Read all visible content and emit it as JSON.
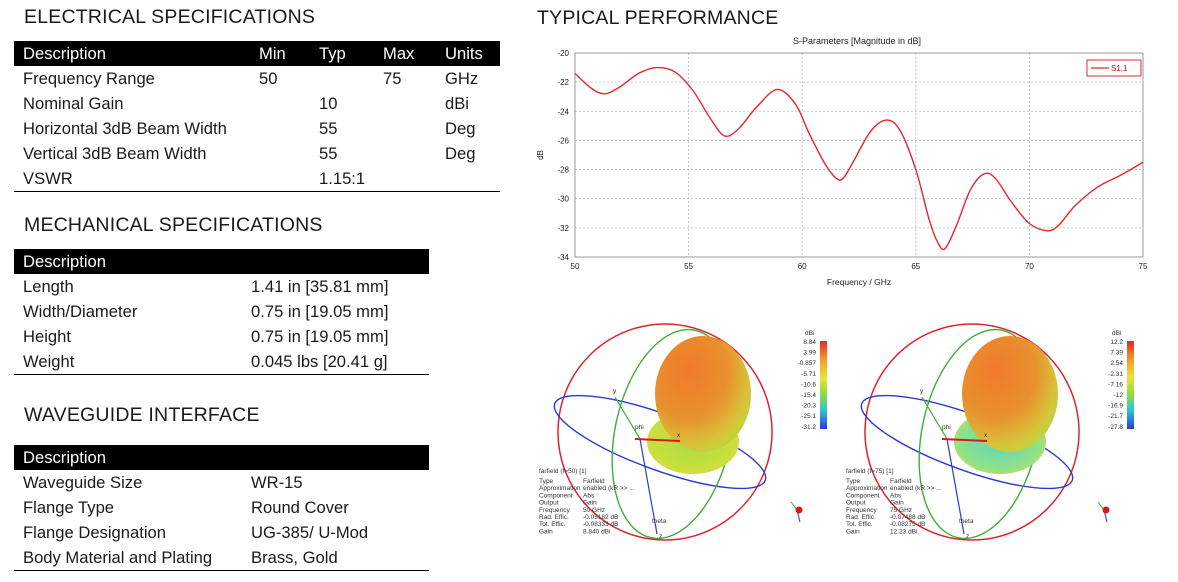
{
  "electrical": {
    "title": "ELECTRICAL SPECIFICATIONS",
    "headers": [
      "Description",
      "Min",
      "Typ",
      "Max",
      "Units"
    ],
    "rows": [
      [
        "Frequency Range",
        "50",
        "",
        "75",
        "GHz"
      ],
      [
        "Nominal Gain",
        "",
        "10",
        "",
        "dBi"
      ],
      [
        "Horizontal 3dB Beam Width",
        "",
        "55",
        "",
        "Deg"
      ],
      [
        "Vertical 3dB Beam Width",
        "",
        "55",
        "",
        "Deg"
      ],
      [
        "VSWR",
        "",
        "1.15:1",
        "",
        ""
      ]
    ]
  },
  "mechanical": {
    "title": "MECHANICAL SPECIFICATIONS",
    "header": "Description",
    "rows": [
      [
        "Length",
        "1.41 in [35.81 mm]"
      ],
      [
        "Width/Diameter",
        "0.75 in [19.05 mm]"
      ],
      [
        "Height",
        "0.75 in [19.05 mm]"
      ],
      [
        "Weight",
        "0.045 lbs [20.41 g]"
      ]
    ]
  },
  "waveguide": {
    "title": "WAVEGUIDE INTERFACE",
    "header": "Description",
    "rows": [
      [
        "Waveguide Size",
        "WR-15"
      ],
      [
        "Flange Type",
        "Round Cover"
      ],
      [
        "Flange Designation",
        "UG-385/ U-Mod"
      ],
      [
        "Body Material and Plating",
        "Brass, Gold"
      ]
    ]
  },
  "performance": {
    "title": "TYPICAL PERFORMANCE"
  },
  "chart_data": {
    "type": "line",
    "title": "S-Parameters [Magnitude in dB]",
    "xlabel": "Frequency / GHz",
    "ylabel": "dB",
    "xlim": [
      50,
      75
    ],
    "ylim": [
      -34,
      -20
    ],
    "xticks": [
      50,
      55,
      60,
      65,
      70,
      75
    ],
    "yticks": [
      -20,
      -22,
      -24,
      -26,
      -28,
      -30,
      -32,
      -34
    ],
    "grid": true,
    "legend_position": "top-right",
    "series": [
      {
        "name": "S1,1",
        "color": "#e8262a",
        "x": [
          50,
          50.7,
          51.3,
          52,
          52.8,
          53.6,
          54.4,
          55.2,
          56,
          56.6,
          57.2,
          58,
          58.9,
          59.7,
          60.3,
          61,
          61.5,
          61.8,
          62.2,
          63,
          63.7,
          64.3,
          65,
          65.6,
          66,
          66.3,
          66.8,
          67.4,
          68,
          68.5,
          69.2,
          70,
          70.8,
          71.3,
          72,
          73,
          74,
          75
        ],
        "y": [
          -21.4,
          -22.4,
          -22.8,
          -22.3,
          -21.4,
          -21.0,
          -21.3,
          -22.6,
          -24.6,
          -25.7,
          -25.2,
          -23.7,
          -22.5,
          -23.5,
          -25.5,
          -27.6,
          -28.6,
          -28.6,
          -27.6,
          -25.4,
          -24.6,
          -25.3,
          -28.0,
          -31.5,
          -33.1,
          -33.4,
          -31.8,
          -29.4,
          -28.3,
          -28.6,
          -30.2,
          -31.7,
          -32.2,
          -31.8,
          -30.5,
          -29.2,
          -28.4,
          -27.5
        ]
      }
    ]
  },
  "farfield_left": {
    "title": "farfield (f=50) [1]",
    "colorbar_unit": "dBi",
    "colorbar_ticks": [
      "8.84",
      "3.99",
      "-0.857",
      "-5.71",
      "-10.6",
      "-15.4",
      "-20.3",
      "-25.1",
      "-31.2"
    ],
    "info_keys": [
      "Type",
      "Approximation",
      "Component",
      "Output",
      "Frequency",
      "Rad. Effic.",
      "Tot. Effic.",
      "Gain"
    ],
    "info_values": [
      "Farfield",
      "enabled (kR >> ...",
      "Abs",
      "Gain",
      "50 GHz",
      "-0.05182 dB",
      "-0.08333 dB",
      "8.840 dBi"
    ],
    "axis_labels": [
      "y",
      "z",
      "x",
      "theta",
      "phi"
    ]
  },
  "farfield_right": {
    "title": "farfield (f=75) [1]",
    "colorbar_unit": "dBi",
    "colorbar_ticks": [
      "12.2",
      "7.39",
      "2.54",
      "-2.31",
      "-7.16",
      "-12",
      "-16.9",
      "-21.7",
      "-27.8"
    ],
    "info_keys": [
      "Type",
      "Approximation",
      "Component",
      "Output",
      "Frequency",
      "Rad. Effic.",
      "Tot. Effic.",
      "Gain"
    ],
    "info_values": [
      "Farfield",
      "enabled (kR >> ...",
      "Abs",
      "Gain",
      "75 GHz",
      "-0.07488 dB",
      "-0.08275 dB",
      "12.23 dBi"
    ],
    "axis_labels": [
      "y",
      "z",
      "x",
      "theta",
      "phi"
    ]
  }
}
